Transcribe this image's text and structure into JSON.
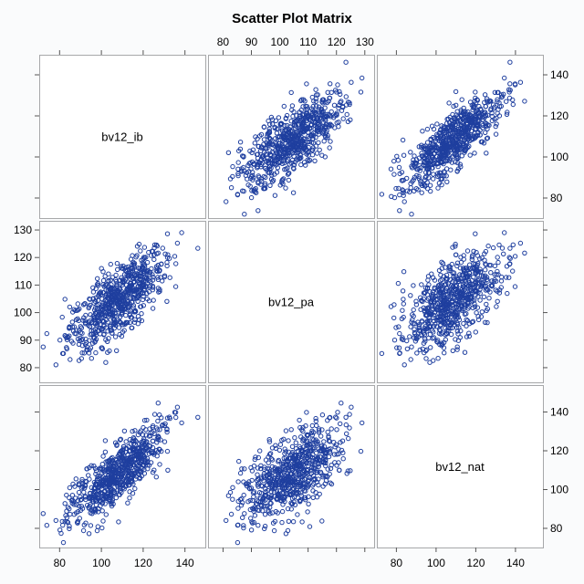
{
  "chart_data": {
    "type": "scatter",
    "title": "Scatter Plot Matrix",
    "variables": [
      "bv12_ib",
      "bv12_pa",
      "bv12_nat"
    ],
    "axes": {
      "bv12_ib": {
        "range": [
          72,
          148
        ],
        "ticks": [
          80,
          100,
          120,
          140
        ],
        "tick_labels": [
          "80",
          "100",
          "120",
          "140"
        ]
      },
      "bv12_pa": {
        "range": [
          76,
          132
        ],
        "ticks": [
          80,
          90,
          100,
          110,
          120,
          130
        ],
        "tick_labels": [
          "80",
          "90",
          "100",
          "110",
          "120",
          "130"
        ]
      },
      "bv12_nat": {
        "range": [
          72,
          152
        ],
        "ticks": [
          80,
          100,
          120,
          140
        ],
        "tick_labels": [
          "80",
          "100",
          "120",
          "140"
        ]
      }
    },
    "tick_placement": {
      "top_columns": [
        1
      ],
      "bottom_columns": [
        0,
        2
      ],
      "right_rows": [
        0,
        2
      ],
      "left_rows": [
        1
      ]
    },
    "grid": false,
    "legend": "none",
    "marker": "open-circle",
    "marker_color": "#1f3f9f",
    "n_points": 700,
    "sample_stats": {
      "bv12_ib": {
        "mean": 107.5,
        "sd": 11.8
      },
      "bv12_pa": {
        "mean": 104.5,
        "sd": 9.0
      },
      "bv12_nat": {
        "mean": 107.5,
        "sd": 12.5
      }
    },
    "correlations": {
      "bv12_ib__bv12_pa": 0.72,
      "bv12_ib__bv12_nat": 0.82,
      "bv12_pa__bv12_nat": 0.6
    }
  }
}
